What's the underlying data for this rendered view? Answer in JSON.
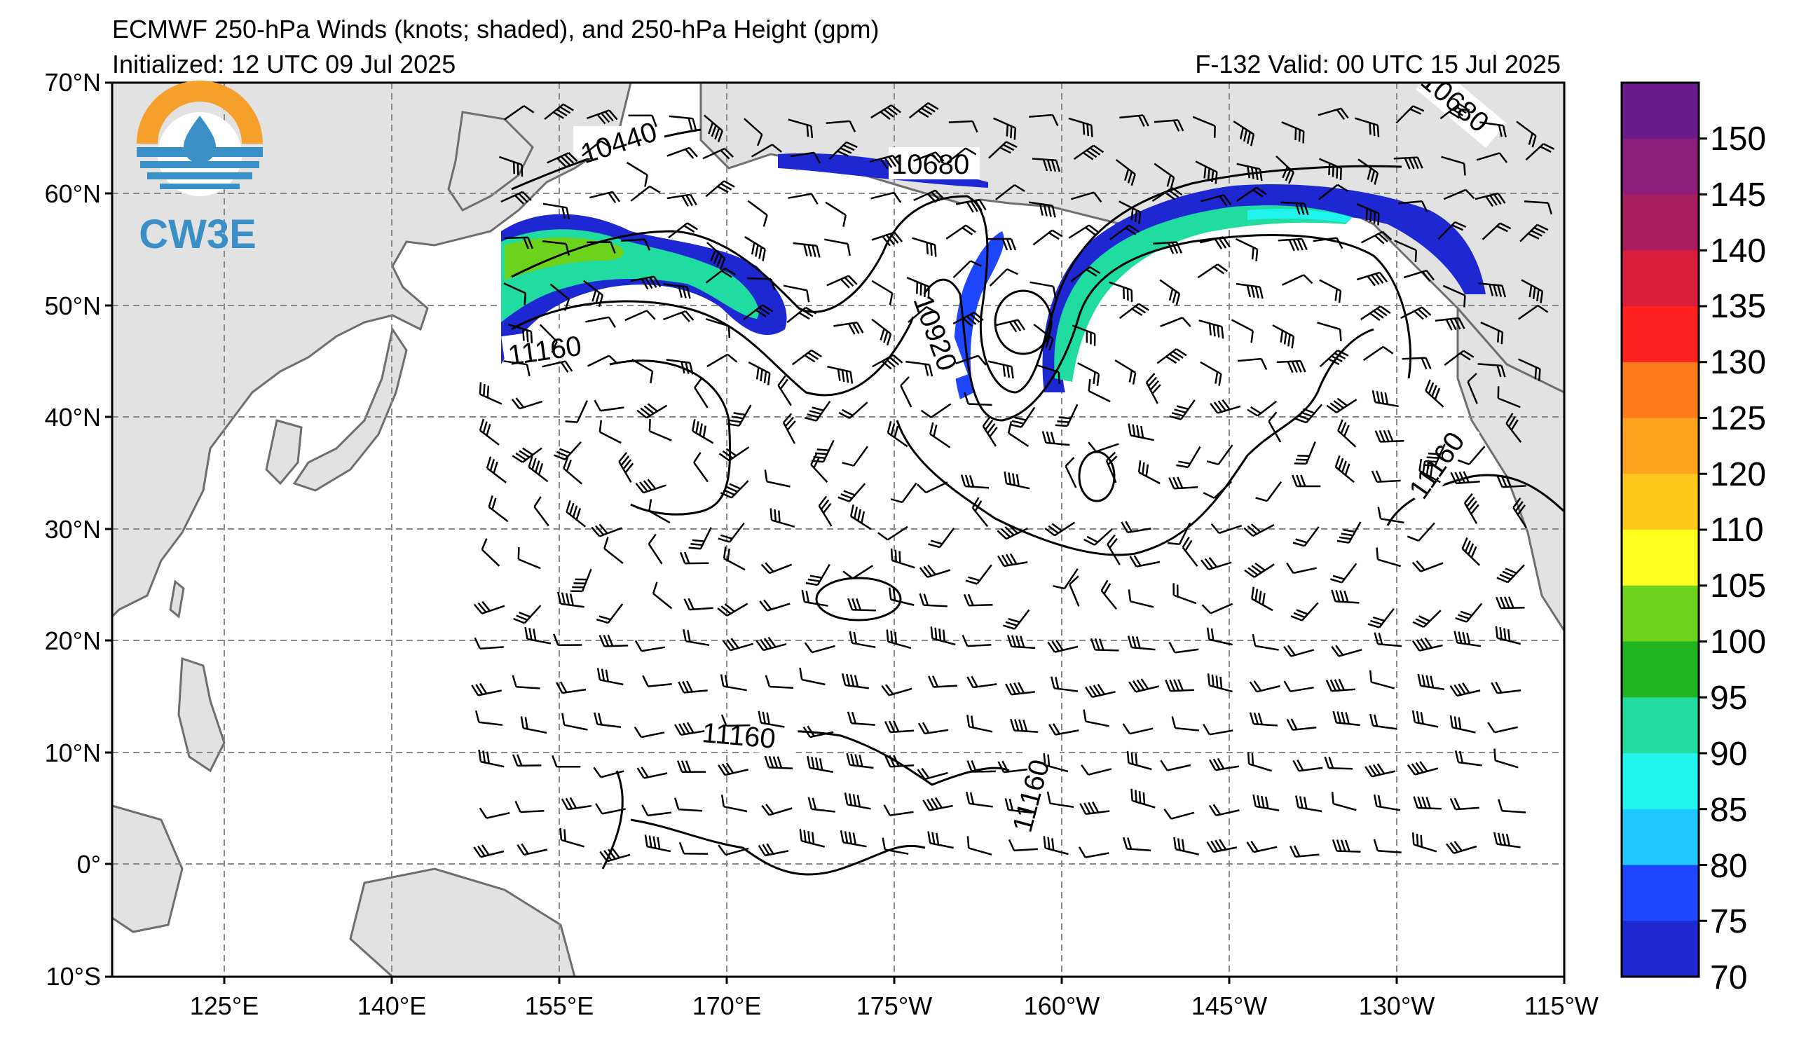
{
  "header": {
    "title": "ECMWF 250-hPa Winds (knots; shaded), and 250-hPa Height (gpm)",
    "initialized": "Initialized: 12 UTC 09 Jul 2025",
    "valid": "F-132  Valid: 00 UTC 15 Jul 2025"
  },
  "logo": {
    "text": "CW3E"
  },
  "map": {
    "lat_labels": [
      "70°N",
      "60°N",
      "50°N",
      "40°N",
      "30°N",
      "20°N",
      "10°N",
      "0°",
      "10°S"
    ],
    "lon_labels": [
      "125°E",
      "140°E",
      "155°E",
      "170°E",
      "175°W",
      "160°W",
      "145°W",
      "130°W",
      "115°W"
    ],
    "contour_labels": [
      "10440",
      "10680",
      "10680",
      "10920",
      "11160",
      "11160",
      "11160",
      "11160"
    ],
    "colors": {
      "land": "#e2e2e2",
      "coast": "#6e6e6e",
      "grid": "#8a8a8a"
    }
  },
  "colorbar": {
    "ticks": [
      "150",
      "145",
      "140",
      "135",
      "130",
      "125",
      "120",
      "110",
      "105",
      "100",
      "95",
      "90",
      "85",
      "80",
      "75",
      "70"
    ],
    "colors": [
      "#6a1c8e",
      "#8c1f7c",
      "#a81e5e",
      "#d81e3c",
      "#ff2020",
      "#ff7a1c",
      "#ffa21c",
      "#ffc81c",
      "#ffff1e",
      "#6cd21c",
      "#20b420",
      "#20dca0",
      "#20f4ec",
      "#20c8ff",
      "#1e46ff",
      "#1e28d2"
    ]
  }
}
